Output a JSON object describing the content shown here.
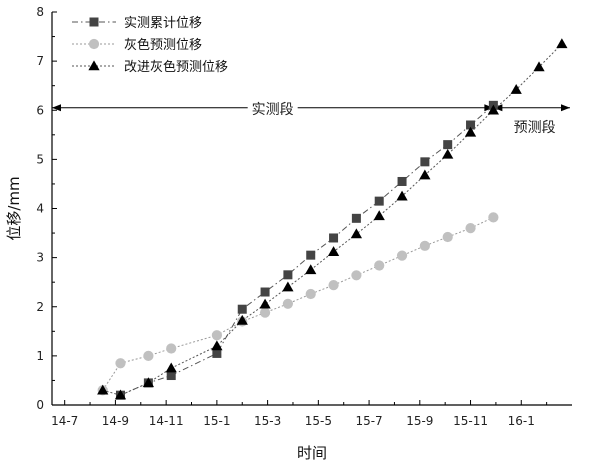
{
  "chart_data": {
    "type": "line",
    "xlabel": "时间",
    "ylabel": "位移/mm",
    "x_tick_labels": [
      "14-7",
      "14-9",
      "14-11",
      "15-1",
      "15-3",
      "15-5",
      "15-7",
      "15-9",
      "15-11",
      "16-1"
    ],
    "x_tick_months": [
      0,
      2,
      4,
      6,
      8,
      10,
      12,
      14,
      16,
      18
    ],
    "xlim": [
      -0.5,
      20
    ],
    "ylim": [
      0,
      8
    ],
    "y_ticks": [
      0,
      1,
      2,
      3,
      4,
      5,
      6,
      7,
      8
    ],
    "grid": false,
    "legend_position": "top-left",
    "series": [
      {
        "name": "实测累计位移",
        "marker": "square",
        "color": "#444444",
        "line_style": "dash-dot",
        "x": [
          2.2,
          3.3,
          4.2,
          6.0,
          7.0,
          7.9,
          8.8,
          9.7,
          10.6,
          11.5,
          12.4,
          13.3,
          14.2,
          15.1,
          16.0,
          16.9
        ],
        "y": [
          0.2,
          0.45,
          0.6,
          1.05,
          1.95,
          2.3,
          2.65,
          3.05,
          3.4,
          3.8,
          4.15,
          4.55,
          4.95,
          5.3,
          5.7,
          6.1
        ]
      },
      {
        "name": "灰色预测位移",
        "marker": "circle",
        "color": "#c0c0c0",
        "line_style": "dotted",
        "x": [
          1.5,
          2.2,
          3.3,
          4.2,
          6.0,
          7.0,
          7.9,
          8.8,
          9.7,
          10.6,
          11.5,
          12.4,
          13.3,
          14.2,
          15.1,
          16.0,
          16.9
        ],
        "y": [
          0.3,
          0.85,
          1.0,
          1.15,
          1.42,
          1.7,
          1.88,
          2.06,
          2.26,
          2.44,
          2.64,
          2.84,
          3.04,
          3.24,
          3.42,
          3.6,
          3.82
        ]
      },
      {
        "name": "改进灰色预测位移",
        "marker": "triangle",
        "color": "#000000",
        "line_style": "dotted",
        "x": [
          1.5,
          2.2,
          3.3,
          4.2,
          6.0,
          7.0,
          7.9,
          8.8,
          9.7,
          10.6,
          11.5,
          12.4,
          13.3,
          14.2,
          15.1,
          16.0,
          16.9,
          17.8,
          18.7,
          19.6
        ],
        "y": [
          0.3,
          0.2,
          0.45,
          0.75,
          1.2,
          1.72,
          2.05,
          2.4,
          2.75,
          3.12,
          3.48,
          3.85,
          4.25,
          4.68,
          5.1,
          5.55,
          6.0,
          6.42,
          6.88,
          7.35
        ]
      }
    ],
    "annotations": {
      "measured_label": "实测段",
      "forecast_label": "预测段",
      "measured_range": [
        -0.5,
        16.9
      ],
      "forecast_range": [
        16.9,
        20
      ],
      "arrow_y": 6.05
    }
  }
}
